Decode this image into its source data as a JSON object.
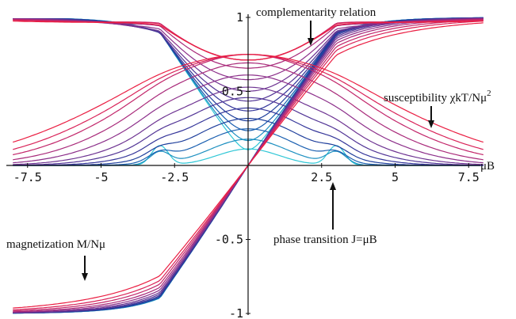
{
  "chart_data": {
    "type": "line",
    "title": "",
    "xlabel": "μB",
    "ylabel": "",
    "xlim": [
      -8,
      8
    ],
    "ylim": [
      -1,
      1
    ],
    "grid": false,
    "x_ticks": [
      {
        "value": -7.5,
        "label": "-7.5"
      },
      {
        "value": -5,
        "label": "-5"
      },
      {
        "value": -2.5,
        "label": "-2.5"
      },
      {
        "value": 2.5,
        "label": "2.5"
      },
      {
        "value": 5,
        "label": "5"
      },
      {
        "value": 7.5,
        "label": "7.5"
      }
    ],
    "y_ticks": [
      {
        "value": 1,
        "label": "1"
      },
      {
        "value": 0.5,
        "label": "0.5"
      },
      {
        "value": -0.5,
        "label": "-0.5"
      },
      {
        "value": -1,
        "label": "-1"
      }
    ],
    "quantities": {
      "magnetization": "magnetization M/Nμ",
      "susceptibility": "susceptibility χkT/Nμ²",
      "complementarity": "complementarity relation"
    },
    "transition_field": 3.0,
    "family": {
      "description_values": "twelve curves per quantity, from narrow (cyan, low temperature) to broad (red, high temperature)",
      "temperature_params": [
        0.22,
        0.5,
        0.8,
        1.1,
        1.4,
        1.7,
        2.0,
        2.35,
        2.7,
        3.1,
        3.5,
        4.0
      ],
      "colors": [
        "#2fc7d6",
        "#1c8fc0",
        "#1a5fb0",
        "#1f3f9c",
        "#35369a",
        "#523596",
        "#6e3492",
        "#8c2f8a",
        "#a92a7a",
        "#c2266a",
        "#d92258",
        "#ea1e42"
      ]
    },
    "annotations": {
      "complementarity": "complementarity relation",
      "susceptibility": "susceptibility χkT/Nμ",
      "susceptibility_sup": "2",
      "phase_transition": "phase transition J=μB",
      "magnetization": "magnetization M/Nμ"
    }
  }
}
